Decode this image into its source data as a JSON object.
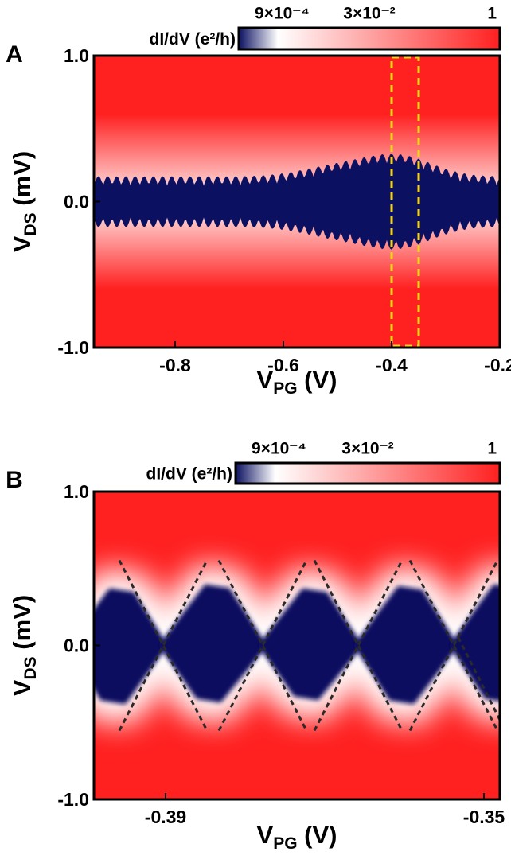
{
  "chart_data": [
    {
      "type": "heatmap",
      "panel_label": "A",
      "colorbar": {
        "label": "dI/dV (e²/h)",
        "lim": [
          0.0009,
          1
        ],
        "scale": "log",
        "ticks": [
          {
            "value": 0.0009,
            "label": "9×10⁻⁴"
          },
          {
            "value": 0.03,
            "label": "3×10⁻²"
          },
          1
        ],
        "colors": [
          "#0b1160",
          "#ffffff",
          "#ff2020"
        ]
      },
      "xlim": [
        -0.95,
        -0.2
      ],
      "xticks": [
        -0.8,
        -0.6,
        -0.4,
        -0.2
      ],
      "ylim": [
        -1,
        1
      ],
      "yticks": [
        {
          "value": -1,
          "label": "-1.0"
        },
        {
          "value": 0,
          "label": "0.0"
        },
        {
          "value": 1,
          "label": "1.0"
        }
      ],
      "x_label": {
        "text": "V",
        "subscript": "PG",
        "unit": "(V)"
      },
      "y_label": {
        "text": "V",
        "subscript": "DS",
        "unit": "(mV)"
      },
      "highlight_x": [
        -0.4,
        -0.35
      ]
    },
    {
      "type": "heatmap",
      "panel_label": "B",
      "colorbar": {
        "label": "dI/dV (e²/h)",
        "lim": [
          0.0009,
          1
        ],
        "scale": "log",
        "ticks": [
          {
            "value": 0.0009,
            "label": "9×10⁻⁴"
          },
          {
            "value": 0.03,
            "label": "3×10⁻²"
          },
          1
        ],
        "colors": [
          "#0b1160",
          "#ffffff",
          "#ff2020"
        ]
      },
      "xlim": [
        -0.399,
        -0.348
      ],
      "xticks": [
        -0.39,
        -0.35
      ],
      "ylim": [
        -1,
        1
      ],
      "yticks": [
        {
          "value": -1,
          "label": "-1.0"
        },
        {
          "value": 0,
          "label": "0.0"
        },
        {
          "value": 1,
          "label": "1.0"
        }
      ],
      "x_label": {
        "text": "V",
        "subscript": "PG",
        "unit": "(V)"
      },
      "y_label": {
        "text": "V",
        "subscript": "DS",
        "unit": "(mV)"
      }
    }
  ]
}
